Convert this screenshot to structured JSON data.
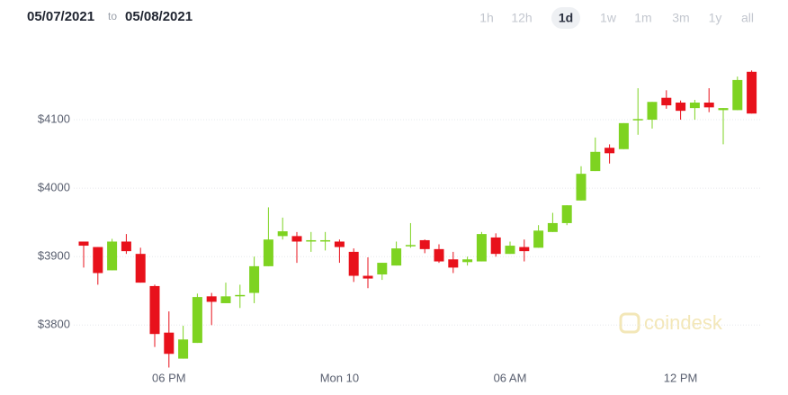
{
  "chart_data": {
    "type": "candlestick",
    "date_from": "05/07/2021",
    "date_joiner": "to",
    "date_to": "05/08/2021",
    "ranges": [
      "1h",
      "12h",
      "1d",
      "1w",
      "1m",
      "3m",
      "1y",
      "all"
    ],
    "selected_range": 2,
    "watermark": "coindesk",
    "categories": [
      null,
      null,
      null,
      null,
      null,
      null,
      "06 PM",
      null,
      null,
      null,
      null,
      null,
      null,
      null,
      null,
      null,
      null,
      null,
      "Mon 10",
      null,
      null,
      null,
      null,
      null,
      null,
      null,
      null,
      null,
      null,
      null,
      "06 AM",
      null,
      null,
      null,
      null,
      null,
      null,
      null,
      null,
      null,
      null,
      null,
      "12 PM",
      null,
      null,
      null,
      null,
      null
    ],
    "open": [
      3922,
      3914,
      3880,
      3922,
      3904,
      3857,
      3789,
      3751,
      3774,
      3842,
      3832,
      3843,
      3847,
      3886,
      3930,
      3930,
      3922,
      3923,
      3922,
      3907,
      3872,
      3874,
      3887,
      3916,
      3924,
      3911,
      3896,
      3892,
      3893,
      3928,
      3904,
      3914,
      3913,
      3936,
      3949,
      3982,
      4025,
      4059,
      4057,
      4100,
      4100,
      4132,
      4125,
      4117,
      4125,
      4114,
      4114,
      4170
    ],
    "high": [
      3922,
      3914,
      3926,
      3933,
      3913,
      3859,
      3820,
      3799,
      3846,
      3847,
      3862,
      3859,
      3900,
      3972,
      3957,
      3936,
      3936,
      3936,
      3925,
      3912,
      3899,
      3891,
      3922,
      3949,
      3925,
      3918,
      3907,
      3900,
      3936,
      3934,
      3922,
      3925,
      3946,
      3964,
      3975,
      4032,
      4074,
      4064,
      4095,
      4146,
      4126,
      4143,
      4128,
      4129,
      4146,
      4117,
      4163,
      4172
    ],
    "low": [
      3884,
      3859,
      3880,
      3904,
      3862,
      3768,
      3738,
      3751,
      3774,
      3800,
      3832,
      3825,
      3832,
      3886,
      3925,
      3891,
      3907,
      3909,
      3891,
      3863,
      3854,
      3866,
      3887,
      3913,
      3905,
      3891,
      3876,
      3887,
      3893,
      3900,
      3904,
      3893,
      3913,
      3936,
      3946,
      3982,
      4025,
      4036,
      4057,
      4078,
      4087,
      4116,
      4100,
      4100,
      4111,
      4064,
      4114,
      4109
    ],
    "close": [
      3916,
      3876,
      3922,
      3908,
      3862,
      3787,
      3758,
      3779,
      3841,
      3834,
      3842,
      3844,
      3886,
      3925,
      3937,
      3922,
      3924,
      3924,
      3914,
      3872,
      3868,
      3891,
      3912,
      3917,
      3911,
      3893,
      3884,
      3896,
      3933,
      3904,
      3916,
      3908,
      3938,
      3949,
      3975,
      4021,
      4053,
      4051,
      4095,
      4101,
      4126,
      4121,
      4113,
      4125,
      4118,
      4117,
      4158,
      4109
    ],
    "up_color": "#7ed321",
    "down_color": "#e8111b",
    "ylim": [
      3736,
      4196
    ],
    "yticks": [
      {
        "value": 3800,
        "label": "$3800"
      },
      {
        "value": 3900,
        "label": "$3900"
      },
      {
        "value": 4000,
        "label": "$4000"
      },
      {
        "value": 4100,
        "label": "$4100"
      }
    ],
    "grid": true
  }
}
